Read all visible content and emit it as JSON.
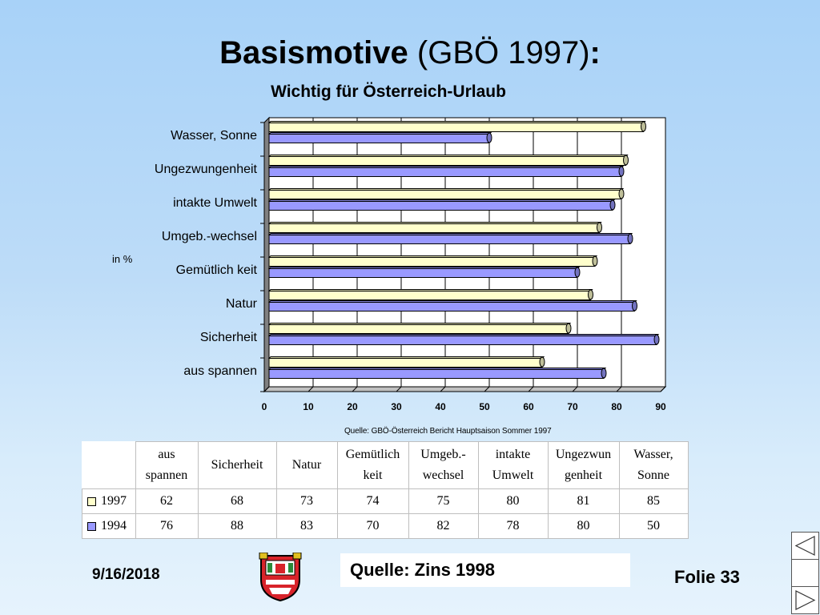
{
  "slide": {
    "title_bold": "Basismotive",
    "title_rest": " (GBÖ 1997)",
    "title_colon": ":",
    "date": "9/16/2018",
    "quelle": "Quelle: Zins 1998",
    "folie": "Folie 33"
  },
  "chart_data": {
    "type": "bar",
    "orientation": "horizontal",
    "title": "Wichtig für Österreich-Urlaub",
    "unit_label": "in %",
    "source_note": "Quelle: GBÖ-Österreich Bericht Hauptsaison Sommer 1997",
    "categories": [
      "aus spannen",
      "Sicherheit",
      "Natur",
      "Gemütlich keit",
      "Umgeb.-wechsel",
      "intakte Umwelt",
      "Ungezwungenheit",
      "Wasser, Sonne"
    ],
    "series": [
      {
        "name": "1997",
        "color": "#ffffcc",
        "values": [
          62,
          68,
          73,
          74,
          75,
          80,
          81,
          85
        ]
      },
      {
        "name": "1994",
        "color": "#9999ff",
        "values": [
          76,
          88,
          83,
          70,
          82,
          78,
          80,
          50
        ]
      }
    ],
    "xlim": [
      0,
      90
    ],
    "xticks": [
      "0",
      "10",
      "20",
      "30",
      "40",
      "50",
      "60",
      "70",
      "80",
      "90"
    ],
    "grid": true,
    "legend": "table"
  },
  "table": {
    "headers": [
      [
        "aus",
        "spannen"
      ],
      [
        "Sicherheit"
      ],
      [
        "Natur"
      ],
      [
        "Gemütlich",
        "keit"
      ],
      [
        "Umgeb.-",
        "wechsel"
      ],
      [
        "intakte",
        "Umwelt"
      ],
      [
        "Ungezwun",
        "genheit"
      ],
      [
        "Wasser,",
        "Sonne"
      ]
    ]
  },
  "nav": {
    "prev_icon": "triangle-left-icon",
    "blank_icon": "blank-button",
    "next_icon": "triangle-right-icon"
  }
}
